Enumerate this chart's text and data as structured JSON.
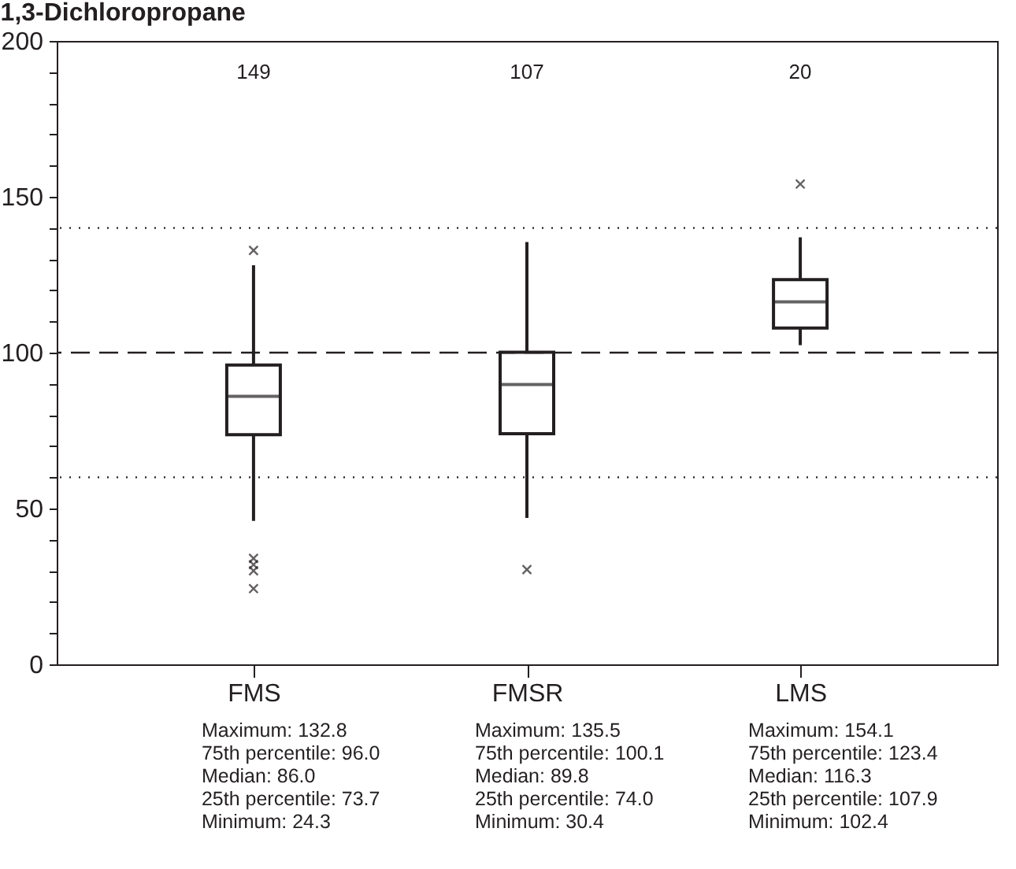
{
  "chart_data": {
    "type": "box",
    "title": "1,3-Dichloropropane",
    "categories": [
      "FMS",
      "FMSR",
      "LMS"
    ],
    "series": [
      {
        "color": "#231f20",
        "boxes": [
          {
            "low": 46,
            "q1": 73.7,
            "median": 86.0,
            "q3": 96.0,
            "high": 128,
            "outliers": [
              132.8,
              34,
              32,
              30,
              24.3
            ]
          },
          {
            "low": 47,
            "q1": 74.0,
            "median": 89.8,
            "q3": 100.1,
            "high": 135.5,
            "outliers": [
              30.4
            ]
          },
          {
            "low": 102.4,
            "q1": 107.9,
            "median": 116.3,
            "q3": 123.4,
            "high": 137,
            "outliers": [
              154.1
            ]
          }
        ]
      }
    ],
    "ylim": [
      0,
      200
    ],
    "yticks": [
      0,
      {
        "value": 10,
        "label": null
      },
      {
        "value": 20,
        "label": null
      },
      {
        "value": 30,
        "label": null
      },
      {
        "value": 40,
        "label": null
      },
      50,
      {
        "value": 60,
        "label": null
      },
      {
        "value": 70,
        "label": null
      },
      {
        "value": 80,
        "label": null
      },
      {
        "value": 90,
        "label": null
      },
      100,
      {
        "value": 110,
        "label": null
      },
      {
        "value": 120,
        "label": null
      },
      {
        "value": 130,
        "label": null
      },
      {
        "value": 140,
        "label": null
      },
      150,
      {
        "value": 160,
        "label": null
      },
      {
        "value": 170,
        "label": null
      },
      {
        "value": 180,
        "label": null
      },
      {
        "value": 190,
        "label": null
      },
      200
    ],
    "grid": false,
    "marker": "cross",
    "ref_lines": [
      {
        "axis": "y",
        "value": 140,
        "line_style": "dotted"
      },
      {
        "axis": "y",
        "value": 100,
        "line_style": "dashed"
      },
      {
        "axis": "y",
        "value": 60,
        "line_style": "dotted"
      }
    ],
    "annotations": [
      "149",
      "107",
      "20",
      "Maximum: 132.8\n75th percentile: 96.0\nMedian: 86.0\n25th percentile: 73.7\nMinimum: 24.3",
      "Maximum: 135.5\n75th percentile: 100.1\nMedian: 89.8\n25th percentile: 74.0\nMinimum: 30.4",
      "Maximum: 154.1\n75th percentile: 123.4\nMedian: 116.3\n25th percentile: 107.9\nMinimum: 102.4"
    ]
  }
}
